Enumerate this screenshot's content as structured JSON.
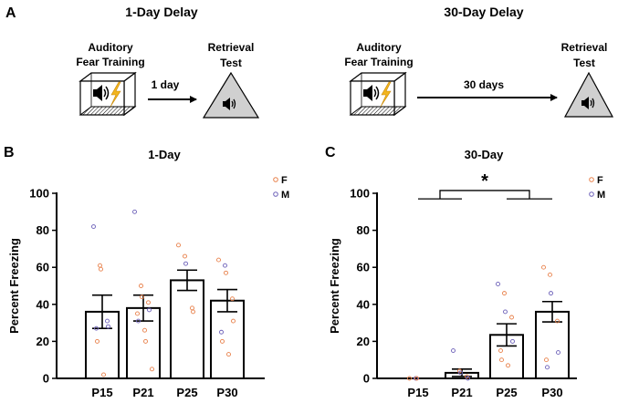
{
  "panel_a": {
    "letter": "A",
    "left": {
      "title": "1-Day Delay",
      "training_line1": "Auditory",
      "training_line2": "Fear Training",
      "interval": "1 day",
      "test_line1": "Retrieval",
      "test_line2": "Test"
    },
    "right": {
      "title": "30-Day Delay",
      "training_line1": "Auditory",
      "training_line2": "Fear Training",
      "interval": "30 days",
      "test_line1": "Retrieval",
      "test_line2": "Test"
    }
  },
  "colors": {
    "female": "#e8804a",
    "male": "#6b5fb8",
    "axis": "#000000"
  },
  "chart_data": [
    {
      "type": "bar",
      "panel": "B",
      "title": "1-Day",
      "ylabel": "Percent Freezing",
      "xlabel": "",
      "ylim": [
        0,
        100
      ],
      "yticks": [
        0,
        20,
        40,
        60,
        80,
        100
      ],
      "categories": [
        "P15",
        "P21",
        "P25",
        "P30"
      ],
      "values": [
        36,
        38,
        53,
        42
      ],
      "errors": [
        9,
        7,
        5.5,
        6
      ],
      "legend": [
        "F",
        "M"
      ],
      "legend_position": "top-right",
      "points": [
        [
          {
            "v": 82,
            "s": "M"
          },
          {
            "v": 61,
            "s": "F"
          },
          {
            "v": 59,
            "s": "F"
          },
          {
            "v": 31,
            "s": "M"
          },
          {
            "v": 28,
            "s": "M"
          },
          {
            "v": 27,
            "s": "M"
          },
          {
            "v": 20,
            "s": "F"
          },
          {
            "v": 2,
            "s": "F"
          }
        ],
        [
          {
            "v": 90,
            "s": "M"
          },
          {
            "v": 50,
            "s": "F"
          },
          {
            "v": 44,
            "s": "F"
          },
          {
            "v": 41,
            "s": "F"
          },
          {
            "v": 37,
            "s": "M"
          },
          {
            "v": 35,
            "s": "F"
          },
          {
            "v": 31,
            "s": "M"
          },
          {
            "v": 26,
            "s": "F"
          },
          {
            "v": 20,
            "s": "F"
          },
          {
            "v": 5,
            "s": "F"
          }
        ],
        [
          {
            "v": 72,
            "s": "F"
          },
          {
            "v": 66,
            "s": "F"
          },
          {
            "v": 62,
            "s": "M"
          },
          {
            "v": 38,
            "s": "F"
          },
          {
            "v": 36,
            "s": "F"
          }
        ],
        [
          {
            "v": 64,
            "s": "F"
          },
          {
            "v": 61,
            "s": "M"
          },
          {
            "v": 57,
            "s": "F"
          },
          {
            "v": 43,
            "s": "F"
          },
          {
            "v": 31,
            "s": "F"
          },
          {
            "v": 25,
            "s": "M"
          },
          {
            "v": 20,
            "s": "F"
          },
          {
            "v": 13,
            "s": "F"
          }
        ]
      ]
    },
    {
      "type": "bar",
      "panel": "C",
      "title": "30-Day",
      "ylabel": "Percent Freezing",
      "xlabel": "",
      "ylim": [
        0,
        100
      ],
      "yticks": [
        0,
        20,
        40,
        60,
        80,
        100
      ],
      "categories": [
        "P15",
        "P21",
        "P25",
        "P30"
      ],
      "values": [
        0,
        3,
        23.5,
        36
      ],
      "errors": [
        0,
        2,
        6,
        5.5
      ],
      "legend": [
        "F",
        "M"
      ],
      "legend_position": "top-right",
      "significance": "*",
      "comparison": [
        [
          "P15",
          "P21"
        ],
        [
          "P25",
          "P30"
        ]
      ],
      "points": [
        [
          {
            "v": 0,
            "s": "F"
          },
          {
            "v": 0,
            "s": "M"
          },
          {
            "v": 0,
            "s": "F"
          }
        ],
        [
          {
            "v": 15,
            "s": "M"
          },
          {
            "v": 4,
            "s": "F"
          },
          {
            "v": 3,
            "s": "M"
          },
          {
            "v": 1,
            "s": "F"
          },
          {
            "v": 0,
            "s": "M"
          }
        ],
        [
          {
            "v": 51,
            "s": "M"
          },
          {
            "v": 46,
            "s": "F"
          },
          {
            "v": 36,
            "s": "M"
          },
          {
            "v": 33,
            "s": "F"
          },
          {
            "v": 20,
            "s": "M"
          },
          {
            "v": 15,
            "s": "F"
          },
          {
            "v": 10,
            "s": "F"
          },
          {
            "v": 7,
            "s": "F"
          }
        ],
        [
          {
            "v": 60,
            "s": "F"
          },
          {
            "v": 56,
            "s": "F"
          },
          {
            "v": 46,
            "s": "M"
          },
          {
            "v": 31,
            "s": "F"
          },
          {
            "v": 14,
            "s": "M"
          },
          {
            "v": 10,
            "s": "F"
          },
          {
            "v": 6,
            "s": "M"
          }
        ]
      ]
    }
  ]
}
